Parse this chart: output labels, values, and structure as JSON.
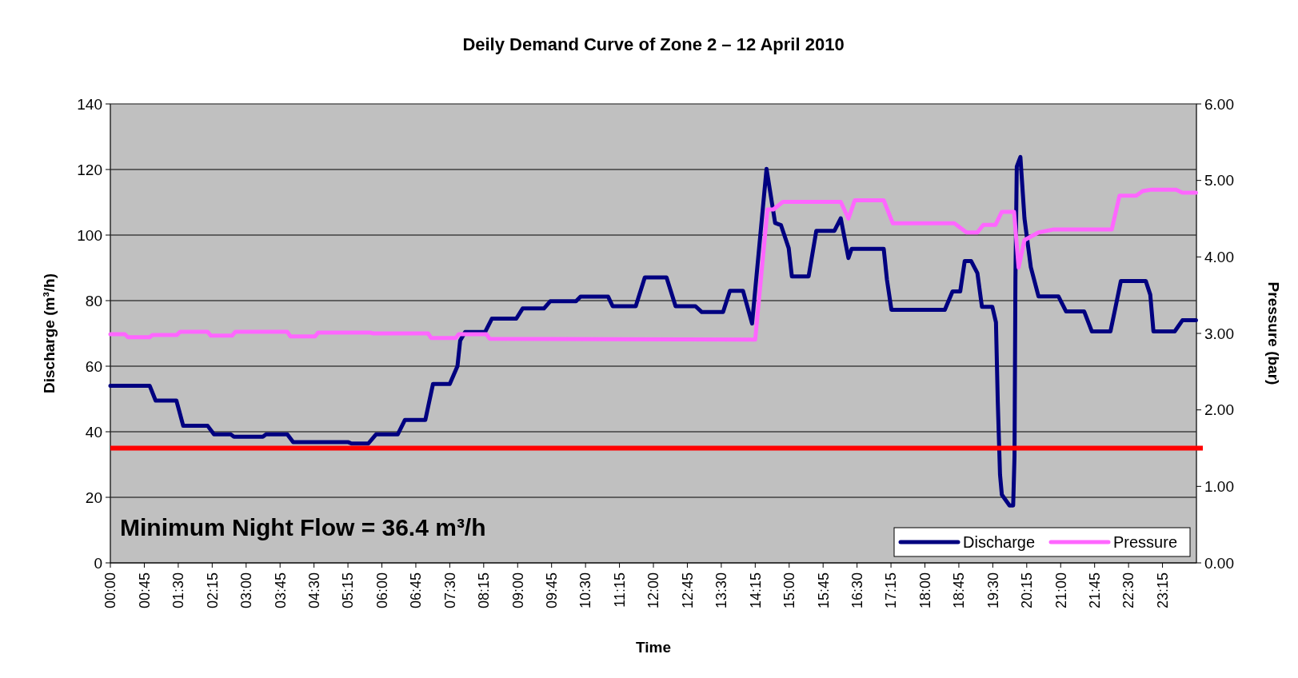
{
  "chart_data": {
    "type": "line",
    "title": "Deily Demand Curve of Zone 2 –  12 April 2010",
    "xlabel": "Time",
    "ylabel": "Discharge (m³/h)",
    "y2label": "Pressure (bar)",
    "xlim": [
      0,
      24
    ],
    "xticks": [
      {
        "value": 0,
        "label": "00:00"
      },
      {
        "value": 0.75,
        "label": "00:45"
      },
      {
        "value": 1.5,
        "label": "01:30"
      },
      {
        "value": 2.25,
        "label": "02:15"
      },
      {
        "value": 3,
        "label": "03:00"
      },
      {
        "value": 3.75,
        "label": "03:45"
      },
      {
        "value": 4.5,
        "label": "04:30"
      },
      {
        "value": 5.25,
        "label": "05:15"
      },
      {
        "value": 6,
        "label": "06:00"
      },
      {
        "value": 6.75,
        "label": "06:45"
      },
      {
        "value": 7.5,
        "label": "07:30"
      },
      {
        "value": 8.25,
        "label": "08:15"
      },
      {
        "value": 9,
        "label": "09:00"
      },
      {
        "value": 9.75,
        "label": "09:45"
      },
      {
        "value": 10.5,
        "label": "10:30"
      },
      {
        "value": 11.25,
        "label": "11:15"
      },
      {
        "value": 12,
        "label": "12:00"
      },
      {
        "value": 12.75,
        "label": "12:45"
      },
      {
        "value": 13.5,
        "label": "13:30"
      },
      {
        "value": 14.25,
        "label": "14:15"
      },
      {
        "value": 15,
        "label": "15:00"
      },
      {
        "value": 15.75,
        "label": "15:45"
      },
      {
        "value": 16.5,
        "label": "16:30"
      },
      {
        "value": 17.25,
        "label": "17:15"
      },
      {
        "value": 18,
        "label": "18:00"
      },
      {
        "value": 18.75,
        "label": "18:45"
      },
      {
        "value": 19.5,
        "label": "19:30"
      },
      {
        "value": 20.25,
        "label": "20:15"
      },
      {
        "value": 21,
        "label": "21:00"
      },
      {
        "value": 21.75,
        "label": "21:45"
      },
      {
        "value": 22.5,
        "label": "22:30"
      },
      {
        "value": 23.25,
        "label": "23:15"
      }
    ],
    "ylim": [
      0,
      140
    ],
    "yticks": [
      0,
      20,
      40,
      60,
      80,
      100,
      120,
      140
    ],
    "y2lim": [
      0,
      6
    ],
    "y2ticks": [
      {
        "value": 0,
        "label": "0.00"
      },
      {
        "value": 1,
        "label": "1.00"
      },
      {
        "value": 2,
        "label": "2.00"
      },
      {
        "value": 3,
        "label": "3.00"
      },
      {
        "value": 4,
        "label": "4.00"
      },
      {
        "value": 5,
        "label": "5.00"
      },
      {
        "value": 6,
        "label": "6.00"
      }
    ],
    "grid": "y",
    "legend": "bottom right",
    "series": [
      {
        "name": "Discharge",
        "color": "#000080",
        "x": [
          0,
          0.87,
          1.0,
          1.46,
          1.61,
          2.15,
          2.29,
          2.66,
          2.73,
          3.37,
          3.44,
          3.91,
          4.04,
          5.26,
          5.33,
          5.7,
          5.87,
          6.35,
          6.51,
          6.96,
          7.13,
          7.5,
          7.67,
          7.73,
          7.84,
          8.28,
          8.43,
          8.97,
          9.11,
          9.58,
          9.72,
          10.29,
          10.39,
          11.0,
          11.1,
          11.61,
          11.81,
          12.29,
          12.49,
          12.93,
          13.07,
          13.54,
          13.69,
          13.98,
          14.18,
          14.5,
          14.69,
          14.82,
          14.99,
          15.06,
          15.43,
          15.6,
          16.0,
          16.14,
          16.31,
          16.38,
          17.09,
          17.16,
          17.26,
          18.44,
          18.61,
          18.78,
          18.88,
          19.02,
          19.16,
          19.26,
          19.49,
          19.57,
          19.61,
          19.66,
          19.7,
          19.87,
          19.95,
          19.98,
          20.0,
          20.03,
          20.11,
          20.2,
          20.34,
          20.51,
          20.95,
          21.12,
          21.52,
          21.69,
          22.1,
          22.2,
          22.33,
          22.88,
          22.98,
          23.05,
          23.52,
          23.69,
          23.99
        ],
        "values": [
          54,
          54,
          49.5,
          49.5,
          41.8,
          41.8,
          39.2,
          39.2,
          38.5,
          38.5,
          39.2,
          39.2,
          36.8,
          36.8,
          36.4,
          36.4,
          39.2,
          39.2,
          43.6,
          43.6,
          54.6,
          54.6,
          60,
          67.8,
          70.4,
          70.4,
          74.5,
          74.5,
          77.6,
          77.6,
          79.8,
          79.8,
          81.2,
          81.2,
          78.3,
          78.3,
          87.1,
          87.1,
          78.3,
          78.3,
          76.5,
          76.5,
          83,
          83,
          73,
          120.2,
          103.7,
          103,
          96,
          87.4,
          87.4,
          101.3,
          101.3,
          105.1,
          93,
          95.8,
          95.8,
          86.5,
          77.2,
          77.2,
          82.8,
          82.8,
          92.1,
          92.1,
          88.4,
          78.1,
          78.1,
          73.4,
          49.2,
          26.9,
          20.8,
          17.5,
          17.5,
          32.4,
          86.4,
          120.9,
          123.8,
          105.1,
          90.2,
          81.3,
          81.3,
          76.7,
          76.7,
          70.6,
          70.6,
          77.2,
          86,
          86,
          81.8,
          70.6,
          70.6,
          74,
          74
        ]
      },
      {
        "name": "Pressure",
        "color": "#ff66ff",
        "axis": "y2",
        "x": [
          0,
          0.32,
          0.39,
          0.87,
          0.93,
          1.47,
          1.54,
          2.15,
          2.22,
          2.69,
          2.76,
          3.91,
          3.98,
          4.52,
          4.59,
          5.74,
          5.81,
          7.02,
          7.09,
          7.63,
          7.7,
          8.31,
          8.38,
          14.25,
          14.52,
          14.65,
          14.86,
          16.14,
          16.31,
          16.45,
          17.09,
          17.29,
          18.65,
          18.92,
          19.16,
          19.29,
          19.56,
          19.7,
          19.97,
          20.07,
          20.2,
          20.51,
          20.85,
          22.13,
          22.3,
          22.67,
          22.81,
          23.01,
          23.55,
          23.69,
          23.99
        ],
        "values": [
          2.99,
          2.99,
          2.95,
          2.95,
          2.98,
          2.98,
          3.02,
          3.02,
          2.97,
          2.97,
          3.02,
          3.02,
          2.96,
          2.96,
          3.01,
          3.01,
          3.0,
          3.0,
          2.94,
          2.94,
          2.99,
          2.99,
          2.93,
          2.92,
          4.62,
          4.62,
          4.72,
          4.72,
          4.5,
          4.74,
          4.74,
          4.44,
          4.44,
          4.32,
          4.32,
          4.42,
          4.42,
          4.59,
          4.59,
          3.86,
          4.22,
          4.32,
          4.36,
          4.36,
          4.8,
          4.8,
          4.86,
          4.88,
          4.88,
          4.84,
          4.84
        ]
      }
    ],
    "ref_lines": [
      {
        "axis": "y",
        "value": 35,
        "color": "#ff0000"
      }
    ],
    "annotations": [
      "Minimum Night Flow = 36.4 m³/h"
    ]
  }
}
